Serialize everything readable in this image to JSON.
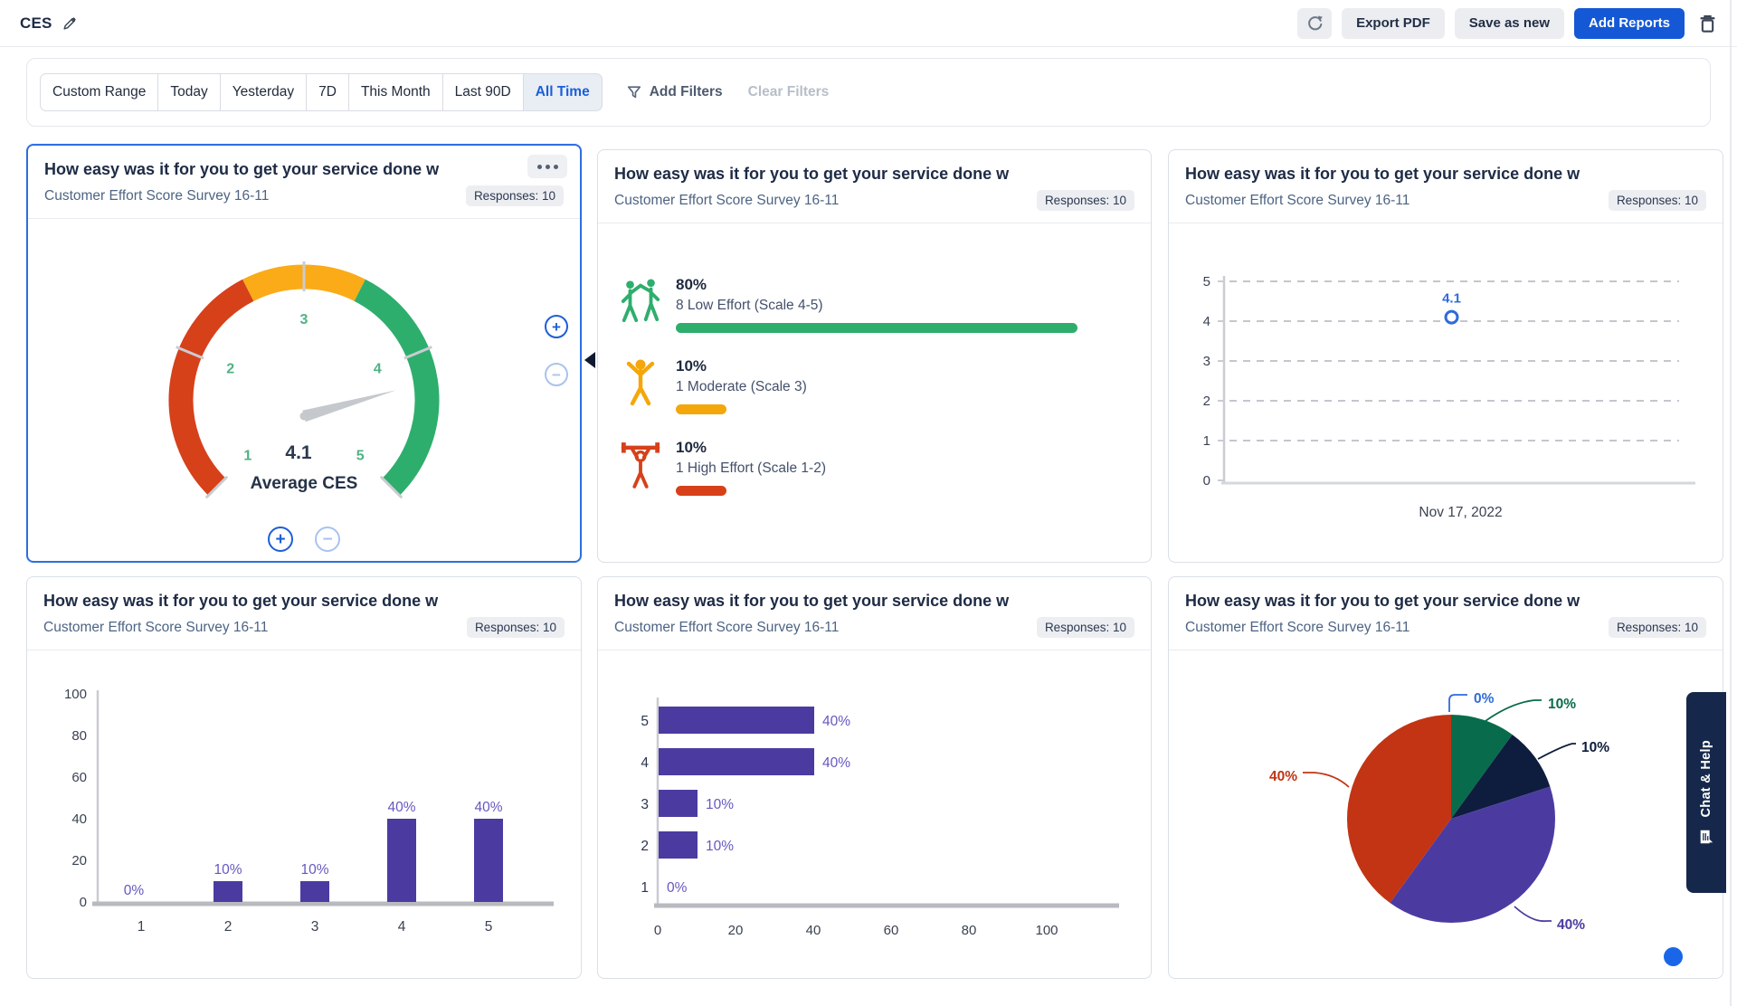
{
  "header": {
    "title": "CES",
    "export_pdf": "Export PDF",
    "save_as_new": "Save as new",
    "add_reports": "Add Reports"
  },
  "filters": {
    "ranges": [
      "Custom Range",
      "Today",
      "Yesterday",
      "7D",
      "This Month",
      "Last 90D",
      "All Time"
    ],
    "active": "All Time",
    "add_filters": "Add Filters",
    "clear_filters": "Clear Filters"
  },
  "chat_tab": "Chat & Help",
  "colors": {
    "accent_blue": "#1458d6",
    "selected_card_border": "#2e6fe0",
    "gauge_red": "#d6411a",
    "gauge_orange": "#fbab17",
    "gauge_green": "#2eae6d",
    "bar_purple": "#4b3ba1",
    "chat_tab_navy": "#15284b"
  },
  "cards": [
    {
      "title": "How easy was it for you to get your service done w",
      "subtitle": "Customer Effort Score Survey 16-11",
      "responses": "Responses: 10",
      "chart_data": {
        "type": "gauge",
        "min": 1,
        "max": 5,
        "value": 4.1,
        "value_label": "4.1",
        "caption": "Average CES",
        "ticks": [
          1,
          2,
          3,
          4,
          5
        ],
        "tick_label_color": "#50b283",
        "needle_color": "#c5c8cc",
        "segments": [
          {
            "to": 2.6,
            "color": "#d6411a"
          },
          {
            "to": 3.4,
            "color": "#fbab17"
          },
          {
            "to": 5,
            "color": "#2eae6d"
          }
        ]
      }
    },
    {
      "title": "How easy was it for you to get your service done w",
      "subtitle": "Customer Effort Score Survey 16-11",
      "responses": "Responses: 10",
      "chart_data": {
        "type": "effort-breakdown",
        "rows": [
          {
            "icon": "high-five-icon",
            "percent": "80%",
            "label": "8 Low Effort (Scale 4-5)",
            "bar_pct": 80,
            "color": "#2eae6d"
          },
          {
            "icon": "arms-raised-icon",
            "percent": "10%",
            "label": "1 Moderate (Scale 3)",
            "bar_pct": 10,
            "color": "#f4a70b"
          },
          {
            "icon": "weightlifter-icon",
            "percent": "10%",
            "label": "1 High Effort (Scale 1-2)",
            "bar_pct": 10,
            "color": "#d6411a"
          }
        ]
      }
    },
    {
      "title": "How easy was it for you to get your service done w",
      "subtitle": "Customer Effort Score Survey 16-11",
      "responses": "Responses: 10",
      "chart_data": {
        "type": "line",
        "x": [
          "Nov 17, 2022"
        ],
        "values": [
          4.1
        ],
        "point_label": "4.1",
        "point_color": "#2f6bdb",
        "ylim": [
          0,
          5
        ],
        "yticks": [
          0,
          1,
          2,
          3,
          4,
          5
        ],
        "xlabel": "Nov 17, 2022"
      }
    },
    {
      "title": "How easy was it for you to get your service done w",
      "subtitle": "Customer Effort Score Survey 16-11",
      "responses": "Responses: 10",
      "chart_data": {
        "type": "bar",
        "categories": [
          "1",
          "2",
          "3",
          "4",
          "5"
        ],
        "values": [
          0,
          10,
          10,
          40,
          40
        ],
        "value_labels": [
          "0%",
          "10%",
          "10%",
          "40%",
          "40%"
        ],
        "ylim": [
          0,
          100
        ],
        "yticks": [
          0,
          20,
          40,
          60,
          80,
          100
        ],
        "bar_color": "#4b3ba1",
        "label_color": "#6458c0"
      }
    },
    {
      "title": "How easy was it for you to get your service done w",
      "subtitle": "Customer Effort Score Survey 16-11",
      "responses": "Responses: 10",
      "chart_data": {
        "type": "hbar",
        "categories": [
          "5",
          "4",
          "3",
          "2",
          "1"
        ],
        "values": [
          40,
          40,
          10,
          10,
          0
        ],
        "value_labels": [
          "40%",
          "40%",
          "10%",
          "10%",
          "0%"
        ],
        "xlim": [
          0,
          100
        ],
        "xticks": [
          0,
          20,
          40,
          60,
          80,
          100
        ],
        "bar_color": "#4b3ba1",
        "label_color": "#6458c0"
      }
    },
    {
      "title": "How easy was it for you to get your service done w",
      "subtitle": "Customer Effort Score Survey 16-11",
      "responses": "Responses: 10",
      "chart_data": {
        "type": "pie",
        "slices": [
          {
            "label": "0%",
            "value": 0,
            "color": "#2f6bdb"
          },
          {
            "label": "10%",
            "value": 10,
            "color": "#086c4c"
          },
          {
            "label": "10%",
            "value": 10,
            "color": "#0e1d3d"
          },
          {
            "label": "40%",
            "value": 40,
            "color": "#4b3ba1"
          },
          {
            "label": "40%",
            "value": 40,
            "color": "#c23413"
          }
        ]
      }
    }
  ]
}
